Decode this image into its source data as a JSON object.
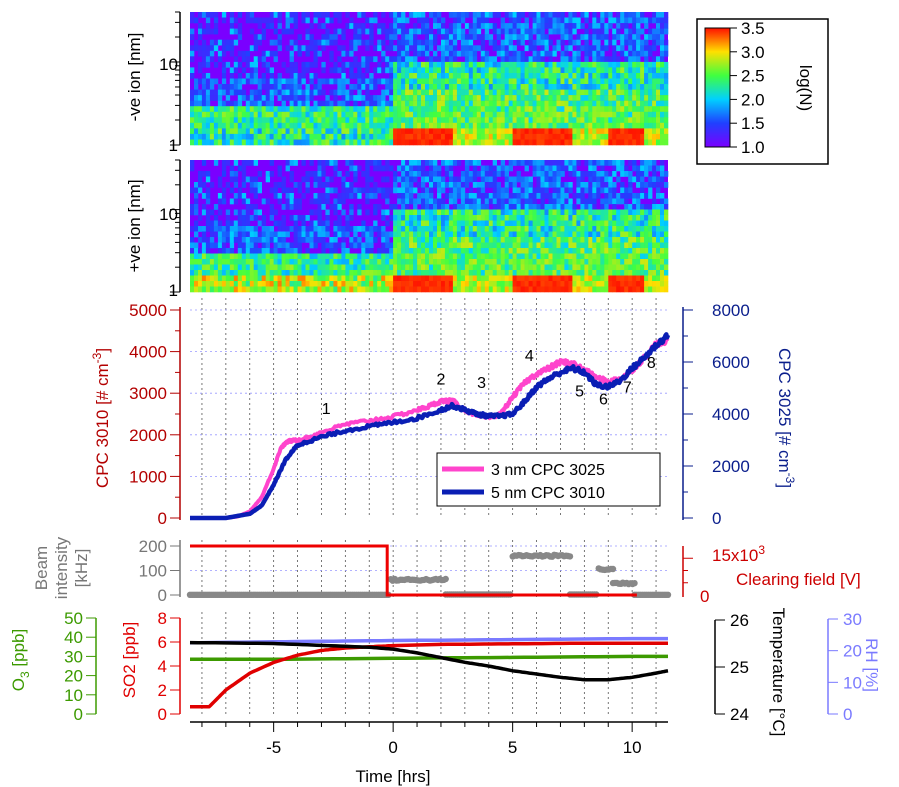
{
  "chart_data": [
    {
      "type": "heatmap",
      "ylabel": "-ve ion [nm]",
      "yscale": "log",
      "ylim": [
        1,
        40
      ],
      "yticks": [
        "1",
        "10"
      ],
      "xlim": [
        -8.5,
        11.5
      ],
      "notes": "Ion size distribution; periods of high concentration (red) at 1-2 nm from 0 to 2.5, 5 to 7.5 and 9 to 10.5 hrs"
    },
    {
      "type": "heatmap",
      "ylabel": "+ve ion [nm]",
      "yscale": "log",
      "ylim": [
        1,
        40
      ],
      "yticks": [
        "1",
        "10"
      ],
      "xlim": [
        -8.5,
        11.5
      ]
    },
    {
      "type": "colorbar",
      "label": "log(N)",
      "range": [
        1.0,
        3.5
      ],
      "ticks": [
        "1.0",
        "1.5",
        "2.0",
        "2.5",
        "3.0",
        "3.5"
      ]
    },
    {
      "type": "line",
      "ylabel_left": "CPC 3010 [# cm",
      "ylabel_left_sup": "-3",
      "ylabel_left_end": "]",
      "ylim_left": [
        0,
        5000
      ],
      "yticks_left": [
        "0",
        "1000",
        "2000",
        "3000",
        "4000",
        "5000"
      ],
      "ylabel_right": "CPC 3025 [# cm",
      "ylabel_right_sup": "-3",
      "ylabel_right_end": "]",
      "ylim_right": [
        0,
        8000
      ],
      "yticks_right": [
        "0",
        "2000",
        "4000",
        "6000",
        "8000"
      ],
      "xlim": [
        -8.5,
        11.5
      ],
      "grid": true,
      "legend": "lower-right",
      "series": [
        {
          "name": "3 nm CPC 3025",
          "axis": "right",
          "color": "#ff44cc",
          "x": [
            -8.5,
            -7.0,
            -6.5,
            -6.0,
            -5.5,
            -5.0,
            -4.7,
            -4.4,
            -4.0,
            -3.5,
            -3.0,
            -2.0,
            -1.0,
            0.0,
            1.0,
            1.5,
            2.0,
            2.5,
            3.0,
            3.5,
            4.0,
            4.5,
            5.0,
            5.5,
            6.0,
            6.5,
            7.0,
            7.5,
            8.0,
            8.5,
            9.0,
            9.5,
            10.0,
            10.5,
            11.0,
            11.5
          ],
          "y": [
            0,
            0,
            60,
            250,
            800,
            1900,
            2700,
            2950,
            3000,
            3100,
            3300,
            3600,
            3750,
            3900,
            4150,
            4300,
            4500,
            4500,
            4150,
            3950,
            3850,
            4000,
            4650,
            5200,
            5550,
            5750,
            6000,
            5950,
            5700,
            5400,
            5250,
            5350,
            5700,
            6150,
            6700,
            6800
          ]
        },
        {
          "name": "5 nm CPC 3010",
          "axis": "left",
          "color": "#0a1eb4",
          "x": [
            -8.5,
            -7.0,
            -6.0,
            -5.5,
            -5.0,
            -4.5,
            -4.0,
            -3.5,
            -3.0,
            -2.0,
            -1.0,
            0.0,
            1.0,
            2.0,
            2.5,
            3.0,
            3.5,
            4.0,
            4.5,
            5.0,
            5.5,
            6.0,
            6.5,
            7.0,
            7.5,
            8.0,
            8.5,
            9.0,
            9.5,
            10.0,
            10.5,
            11.0,
            11.5
          ],
          "y": [
            0,
            0,
            100,
            300,
            800,
            1400,
            1750,
            1850,
            1950,
            2100,
            2200,
            2300,
            2400,
            2600,
            2700,
            2600,
            2500,
            2450,
            2450,
            2500,
            2800,
            3150,
            3350,
            3500,
            3600,
            3500,
            3200,
            3150,
            3300,
            3600,
            3850,
            4150,
            4400
          ]
        }
      ],
      "annotations": [
        {
          "text": "1",
          "x": -2.8,
          "y": 2500
        },
        {
          "text": "2",
          "x": 2.0,
          "y": 3210
        },
        {
          "text": "3",
          "x": 3.7,
          "y": 3130
        },
        {
          "text": "4",
          "x": 5.7,
          "y": 3770
        },
        {
          "text": "5",
          "x": 7.8,
          "y": 2920
        },
        {
          "text": "6",
          "x": 8.8,
          "y": 2730
        },
        {
          "text": "7",
          "x": 9.8,
          "y": 3020
        },
        {
          "text": "8",
          "x": 10.8,
          "y": 3600
        }
      ]
    },
    {
      "type": "scatter",
      "ylabel": "Beam intensity [kHz]",
      "ylabel_lines": [
        "Beam",
        "intensity",
        "[kHz]"
      ],
      "ylim": [
        0,
        220
      ],
      "yticks": [
        "0",
        "100",
        "200"
      ],
      "ylabel_right": "Clearing field [V]",
      "right_tick_label": "15x10",
      "right_tick_sup": "3",
      "right_zero": "0",
      "ylim_right": [
        0,
        22000
      ],
      "xlim": [
        -8.5,
        11.5
      ],
      "grid": true,
      "series": [
        {
          "name": "",
          "kind": "beam",
          "color": "#888888",
          "segments": [
            {
              "x0": -8.5,
              "x1": -0.2,
              "y": 1
            },
            {
              "x0": -0.1,
              "x1": 2.2,
              "y": 62
            },
            {
              "x0": 2.2,
              "x1": 4.9,
              "y": 2
            },
            {
              "x0": 5.0,
              "x1": 7.4,
              "y": 160
            },
            {
              "x0": 7.4,
              "x1": 8.5,
              "y": 2
            },
            {
              "x0": 8.6,
              "x1": 9.2,
              "y": 105
            },
            {
              "x0": 9.2,
              "x1": 10.1,
              "y": 48
            },
            {
              "x0": 10.1,
              "x1": 11.5,
              "y": 1
            }
          ]
        },
        {
          "name": "",
          "kind": "field",
          "axis": "right",
          "color": "#ee0000",
          "x": [
            -8.5,
            -0.25,
            -0.25,
            10.2
          ],
          "y": [
            20000,
            20000,
            0,
            0
          ]
        }
      ]
    },
    {
      "type": "line",
      "xlabel": "Time [hrs]",
      "xticks": [
        "-5",
        "0",
        "5",
        "10"
      ],
      "xlim": [
        -8.5,
        11.5
      ],
      "axes": [
        {
          "label": "O",
          "sub": "3",
          "label_end": " [ppb]",
          "ylim": [
            0,
            50
          ],
          "ticks": [
            "0",
            "10",
            "20",
            "30",
            "40",
            "50"
          ],
          "color": "#3c9a00"
        },
        {
          "label": "SO2 [ppb]",
          "ylim": [
            0,
            8
          ],
          "ticks": [
            "0",
            "2",
            "4",
            "6",
            "8"
          ],
          "color": "#e00000"
        },
        {
          "label": "Temperature [°C]",
          "ylim": [
            24,
            26
          ],
          "ticks": [
            "24",
            "25",
            "26"
          ],
          "color": "#000000"
        },
        {
          "label": "RH [%]",
          "ylim": [
            0,
            30
          ],
          "ticks": [
            "0",
            "10",
            "20",
            "30"
          ],
          "color": "#7a7aff"
        }
      ],
      "series": [
        {
          "name": "",
          "axis": "O3",
          "color": "#3c9a00",
          "x": [
            -8.5,
            -5,
            0,
            5,
            10,
            11.5
          ],
          "y": [
            28.5,
            28.5,
            29,
            29.5,
            30,
            30
          ]
        },
        {
          "name": "",
          "axis": "SO2",
          "color": "#e00000",
          "x": [
            -8.5,
            -7.7,
            -7.0,
            -6.0,
            -5.0,
            -4.0,
            -3.0,
            -2.0,
            -1.0,
            0.0,
            2.0,
            5.0,
            8.0,
            11.5
          ],
          "y": [
            0.6,
            0.6,
            2.0,
            3.4,
            4.3,
            4.9,
            5.3,
            5.5,
            5.6,
            5.7,
            5.8,
            5.85,
            5.9,
            5.9
          ]
        },
        {
          "name": "",
          "axis": "Temperature",
          "color": "#000000",
          "x": [
            -8.5,
            -5.0,
            -3.0,
            -1.0,
            0.0,
            1.0,
            2.0,
            3.0,
            4.0,
            5.0,
            6.0,
            7.0,
            8.0,
            9.0,
            10.0,
            11.0,
            11.5
          ],
          "y": [
            25.52,
            25.5,
            25.46,
            25.42,
            25.38,
            25.3,
            25.2,
            25.1,
            25.02,
            24.92,
            24.85,
            24.78,
            24.73,
            24.73,
            24.78,
            24.87,
            24.92
          ]
        },
        {
          "name": "",
          "axis": "RH",
          "color": "#7a7aff",
          "x": [
            -8.5,
            -5,
            0,
            5,
            10,
            11.5
          ],
          "y": [
            22.5,
            22.8,
            23.2,
            23.5,
            23.8,
            23.8
          ]
        }
      ]
    }
  ]
}
